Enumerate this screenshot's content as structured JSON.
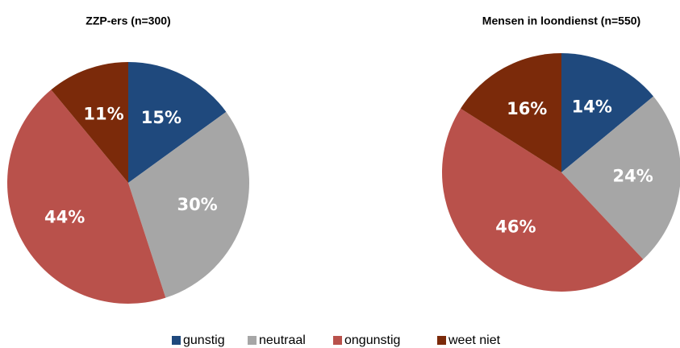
{
  "chart_data": [
    {
      "type": "pie",
      "title": "ZZP-ers (n=300)",
      "categories": [
        "gunstig",
        "neutraal",
        "ongunstig",
        "weet niet"
      ],
      "values": [
        15,
        30,
        44,
        11
      ],
      "value_labels": [
        "15%",
        "30%",
        "44%",
        "11%"
      ],
      "colors": [
        "#1f497d",
        "#a6a6a6",
        "#b9514b",
        "#7b2a0a"
      ]
    },
    {
      "type": "pie",
      "title": "Mensen in loondienst (n=550)",
      "categories": [
        "gunstig",
        "neutraal",
        "ongunstig",
        "weet niet"
      ],
      "values": [
        14,
        24,
        46,
        16
      ],
      "value_labels": [
        "14%",
        "24%",
        "46%",
        "16%"
      ],
      "colors": [
        "#1f497d",
        "#a6a6a6",
        "#b9514b",
        "#7b2a0a"
      ]
    }
  ]
}
